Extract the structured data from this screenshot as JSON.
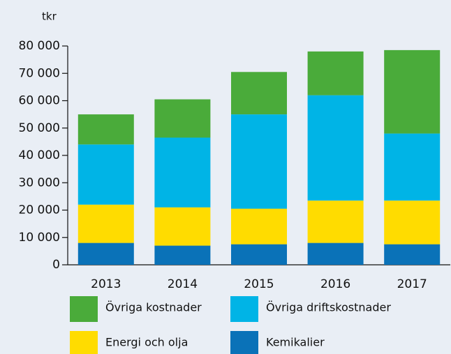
{
  "chart_data": {
    "type": "bar",
    "stacked": true,
    "y_axis_label": "tkr",
    "categories": [
      "2013",
      "2014",
      "2015",
      "2016",
      "2017"
    ],
    "series": [
      {
        "name": "Kemikalier",
        "color": "#0a72b8",
        "values": [
          8000,
          7000,
          7500,
          8000,
          7500
        ]
      },
      {
        "name": "Energi och olja",
        "color": "#ffdc00",
        "values": [
          14000,
          14000,
          13000,
          15500,
          16000
        ]
      },
      {
        "name": "Övriga driftskostnader",
        "color": "#00b4e6",
        "values": [
          22000,
          25500,
          34500,
          38500,
          24500
        ]
      },
      {
        "name": "Övriga kostnader",
        "color": "#4aab3a",
        "values": [
          11000,
          14000,
          15500,
          16000,
          30500
        ]
      }
    ],
    "ylim": [
      0,
      80000
    ],
    "yticks": [
      0,
      {
        "value": 10000,
        "label": "10 000"
      },
      {
        "value": 20000,
        "label": "20 000"
      },
      {
        "value": 30000,
        "label": "30 000"
      },
      {
        "value": 40000,
        "label": "40 000"
      },
      {
        "value": 50000,
        "label": "50 000"
      },
      {
        "value": 60000,
        "label": "60 000"
      },
      {
        "value": 70000,
        "label": "70 000"
      },
      {
        "value": 80000,
        "label": "80 000"
      }
    ],
    "legend": "bottom"
  }
}
